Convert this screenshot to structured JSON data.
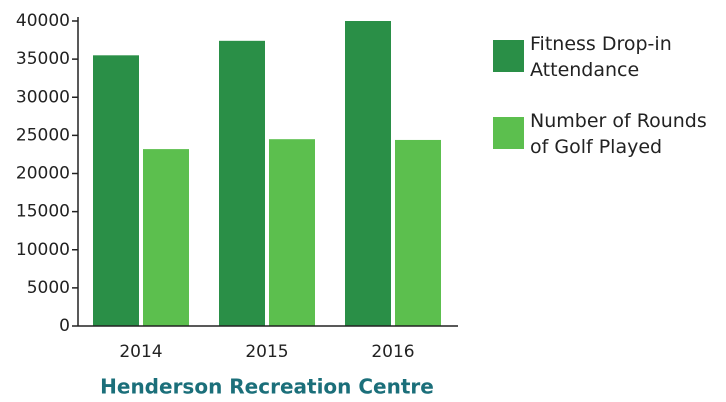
{
  "chart_data": {
    "type": "bar",
    "title": "Henderson Recreation Centre",
    "categories": [
      "2014",
      "2015",
      "2016"
    ],
    "series": [
      {
        "name": "Fitness Drop-in Attendance",
        "color": "#2a8f47",
        "values": [
          35500,
          37400,
          40000
        ]
      },
      {
        "name": "Number of Rounds of Golf Played",
        "color": "#5cbf4e",
        "values": [
          23200,
          24500,
          24400
        ]
      }
    ],
    "ylim": [
      0,
      40000
    ],
    "yticks": [
      0,
      5000,
      10000,
      15000,
      20000,
      25000,
      30000,
      35000,
      40000
    ],
    "legend": "right"
  }
}
